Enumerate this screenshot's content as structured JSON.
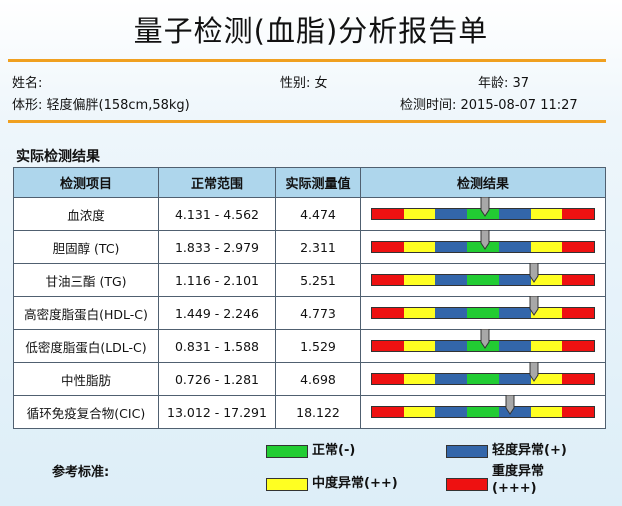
{
  "title": "量子检测(血脂)分析报告单",
  "patient": {
    "name_label": "姓名:",
    "gender": "性别: 女",
    "age": "年龄: 37",
    "body_type": "体形: 轻度偏胖(158cm,58kg)",
    "test_time": "检测时间: 2015-08-07 11:27"
  },
  "section_title": "实际检测结果",
  "table": {
    "headers": [
      "检测项目",
      "正常范围",
      "实际测量值",
      "检测结果"
    ],
    "rows": [
      {
        "item": "血浓度",
        "range": "4.131 - 4.562",
        "value": "4.474",
        "level": 0.51
      },
      {
        "item": "胆固醇 (TC)",
        "range": "1.833 - 2.979",
        "value": "2.311",
        "level": 0.51
      },
      {
        "item": "甘油三酯 (TG)",
        "range": "1.116 - 2.101",
        "value": "5.251",
        "level": 0.73
      },
      {
        "item": "高密度脂蛋白(HDL-C)",
        "range": "1.449 - 2.246",
        "value": "4.773",
        "level": 0.73
      },
      {
        "item": "低密度脂蛋白(LDL-C)",
        "range": "0.831 - 1.588",
        "value": "1.529",
        "level": 0.51
      },
      {
        "item": "中性脂肪",
        "range": "0.726 - 1.281",
        "value": "4.698",
        "level": 0.73
      },
      {
        "item": "循环免疫复合物(CIC)",
        "range": "13.012 - 17.291",
        "value": "18.122",
        "level": 0.62
      }
    ]
  },
  "scale_colors": [
    "#ee1111",
    "#ffff22",
    "#3366aa",
    "#22cc33",
    "#3366aa",
    "#ffff22",
    "#ee1111"
  ],
  "legend": {
    "title": "参考标准:",
    "normal": "正常(-)",
    "mild": "轻度异常(+)",
    "moderate": "中度异常(++)",
    "severe_line1": "重度异常",
    "severe_line2": "(+++)",
    "colors": {
      "normal": "#22cc33",
      "mild": "#3366aa",
      "moderate": "#ffff22",
      "severe": "#ee1111"
    }
  }
}
